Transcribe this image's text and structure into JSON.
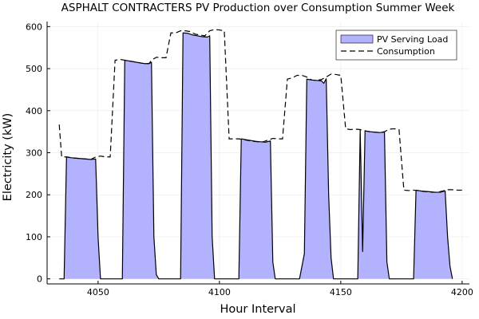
{
  "chart_data": {
    "type": "area",
    "title": "ASPHALT CONTRACTERS PV Production over Consumption Summer Week",
    "xlabel": "Hour Interval",
    "ylabel": "Electricity (kW)",
    "xlim": [
      4029,
      4203
    ],
    "ylim": [
      -12,
      612
    ],
    "xticks": [
      4050,
      4100,
      4150,
      4200
    ],
    "yticks": [
      0,
      100,
      200,
      300,
      400,
      500,
      600
    ],
    "grid": true,
    "legend_position": "top-right",
    "colors": {
      "pv_fill": "#b2b2ff",
      "pv_line": "#000000",
      "consumption": "#000000"
    },
    "series": [
      {
        "name": "PV Serving Load",
        "style": "filled-area",
        "points": [
          [
            4034,
            0
          ],
          [
            4036,
            0
          ],
          [
            4037,
            290
          ],
          [
            4039,
            288
          ],
          [
            4041,
            287
          ],
          [
            4043,
            286
          ],
          [
            4045,
            285
          ],
          [
            4047,
            284
          ],
          [
            4049,
            285
          ],
          [
            4050,
            100
          ],
          [
            4051,
            0
          ],
          [
            4058,
            0
          ],
          [
            4060,
            0
          ],
          [
            4061,
            520
          ],
          [
            4063,
            518
          ],
          [
            4065,
            516
          ],
          [
            4067,
            514
          ],
          [
            4069,
            512
          ],
          [
            4071,
            512
          ],
          [
            4072,
            515
          ],
          [
            4073,
            100
          ],
          [
            4074,
            10
          ],
          [
            4075,
            0
          ],
          [
            4082,
            0
          ],
          [
            4084,
            0
          ],
          [
            4085,
            585
          ],
          [
            4087,
            584
          ],
          [
            4089,
            580
          ],
          [
            4091,
            578
          ],
          [
            4093,
            576
          ],
          [
            4095,
            575
          ],
          [
            4096,
            578
          ],
          [
            4097,
            100
          ],
          [
            4098,
            0
          ],
          [
            4106,
            0
          ],
          [
            4108,
            0
          ],
          [
            4109,
            333
          ],
          [
            4111,
            331
          ],
          [
            4113,
            329
          ],
          [
            4115,
            327
          ],
          [
            4117,
            326
          ],
          [
            4119,
            325
          ],
          [
            4121,
            328
          ],
          [
            4122,
            40
          ],
          [
            4123,
            0
          ],
          [
            4130,
            0
          ],
          [
            4133,
            0
          ],
          [
            4135,
            60
          ],
          [
            4136,
            475
          ],
          [
            4138,
            473
          ],
          [
            4140,
            472
          ],
          [
            4142,
            471
          ],
          [
            4143,
            465
          ],
          [
            4144,
            476
          ],
          [
            4145,
            200
          ],
          [
            4146,
            50
          ],
          [
            4147,
            0
          ],
          [
            4155,
            0
          ],
          [
            4157,
            0
          ],
          [
            4158,
            355
          ],
          [
            4159,
            65
          ],
          [
            4160,
            352
          ],
          [
            4162,
            350
          ],
          [
            4164,
            349
          ],
          [
            4166,
            348
          ],
          [
            4168,
            349
          ],
          [
            4169,
            40
          ],
          [
            4170,
            0
          ],
          [
            4178,
            0
          ],
          [
            4180,
            0
          ],
          [
            4181,
            211
          ],
          [
            4183,
            209
          ],
          [
            4185,
            208
          ],
          [
            4187,
            207
          ],
          [
            4189,
            206
          ],
          [
            4191,
            206
          ],
          [
            4193,
            209
          ],
          [
            4194,
            100
          ],
          [
            4195,
            30
          ],
          [
            4196,
            0
          ]
        ]
      },
      {
        "name": "Consumption",
        "style": "dashed-line",
        "points": [
          [
            4034,
            367
          ],
          [
            4035,
            290
          ],
          [
            4036,
            290
          ],
          [
            4037,
            290
          ],
          [
            4039,
            288
          ],
          [
            4041,
            287
          ],
          [
            4043,
            286
          ],
          [
            4045,
            285
          ],
          [
            4047,
            284
          ],
          [
            4049,
            290
          ],
          [
            4051,
            292
          ],
          [
            4053,
            290
          ],
          [
            4055,
            290
          ],
          [
            4057,
            520
          ],
          [
            4059,
            522
          ],
          [
            4061,
            520
          ],
          [
            4063,
            518
          ],
          [
            4065,
            516
          ],
          [
            4067,
            514
          ],
          [
            4069,
            512
          ],
          [
            4071,
            512
          ],
          [
            4072,
            520
          ],
          [
            4074,
            527
          ],
          [
            4076,
            526
          ],
          [
            4078,
            526
          ],
          [
            4080,
            585
          ],
          [
            4082,
            585
          ],
          [
            4084,
            590
          ],
          [
            4086,
            590
          ],
          [
            4088,
            588
          ],
          [
            4090,
            582
          ],
          [
            4092,
            580
          ],
          [
            4094,
            578
          ],
          [
            4096,
            590
          ],
          [
            4098,
            593
          ],
          [
            4100,
            592
          ],
          [
            4102,
            590
          ],
          [
            4104,
            333
          ],
          [
            4106,
            333
          ],
          [
            4108,
            333
          ],
          [
            4110,
            331
          ],
          [
            4112,
            329
          ],
          [
            4114,
            327
          ],
          [
            4116,
            326
          ],
          [
            4118,
            326
          ],
          [
            4120,
            330
          ],
          [
            4122,
            334
          ],
          [
            4124,
            333
          ],
          [
            4126,
            333
          ],
          [
            4128,
            475
          ],
          [
            4130,
            478
          ],
          [
            4132,
            484
          ],
          [
            4134,
            484
          ],
          [
            4136,
            480
          ],
          [
            4138,
            473
          ],
          [
            4140,
            472
          ],
          [
            4142,
            474
          ],
          [
            4144,
            480
          ],
          [
            4146,
            487
          ],
          [
            4148,
            486
          ],
          [
            4150,
            484
          ],
          [
            4152,
            357
          ],
          [
            4154,
            355
          ],
          [
            4156,
            356
          ],
          [
            4158,
            355
          ],
          [
            4160,
            352
          ],
          [
            4162,
            350
          ],
          [
            4164,
            349
          ],
          [
            4166,
            348
          ],
          [
            4168,
            350
          ],
          [
            4170,
            356
          ],
          [
            4172,
            357
          ],
          [
            4174,
            355
          ],
          [
            4176,
            211
          ],
          [
            4178,
            210
          ],
          [
            4180,
            211
          ],
          [
            4182,
            210
          ],
          [
            4184,
            208
          ],
          [
            4186,
            207
          ],
          [
            4188,
            206
          ],
          [
            4190,
            206
          ],
          [
            4192,
            209
          ],
          [
            4194,
            212
          ],
          [
            4196,
            212
          ],
          [
            4198,
            211
          ],
          [
            4200,
            211
          ]
        ]
      }
    ]
  }
}
